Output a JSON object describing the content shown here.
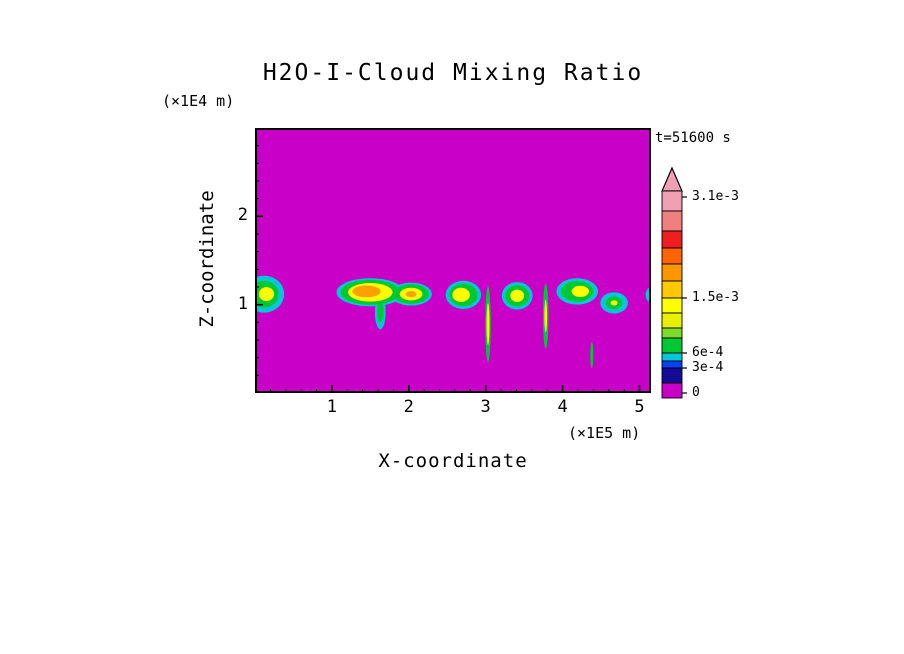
{
  "title": "H2O-I-Cloud Mixing Ratio",
  "time_label": "t=51600 s",
  "axes": {
    "x_label": "X-coordinate",
    "x_unit": "(×1E5 m)",
    "z_label": "Z-coordinate",
    "z_unit": "(×1E4 m)"
  },
  "chart_data": {
    "type": "heatmap",
    "title": "H2O-I-Cloud Mixing Ratio",
    "xlabel": "X-coordinate",
    "ylabel": "Z-coordinate",
    "x_unit": "(×1E5 m)",
    "z_unit": "(×1E4 m)",
    "time_annotation": "t=51600 s",
    "xlim": [
      0,
      5.15
    ],
    "zlim": [
      0,
      3.0
    ],
    "x_major_ticks": [
      1,
      2,
      3,
      4,
      5
    ],
    "x_minor_step": 0.2,
    "z_major_ticks": [
      1,
      2
    ],
    "z_minor_step": 0.2,
    "grid": false,
    "background_value": 0,
    "background_color": "#C800C8",
    "colorbar": {
      "arrow_color": "#F0A0B4",
      "labels": [
        {
          "text": "3.1e-3",
          "offset": 6
        },
        {
          "text": "1.5e-3",
          "offset": 107
        },
        {
          "text": "6e-4",
          "offset": 162
        },
        {
          "text": "3e-4",
          "offset": 177
        },
        {
          "text": "0",
          "offset": 202
        }
      ],
      "segments_bottom_to_top": [
        {
          "c": "#C800C8",
          "h": 15
        },
        {
          "c": "#140A96",
          "h": 15
        },
        {
          "c": "#0040FF",
          "h": 7
        },
        {
          "c": "#00C8D8",
          "h": 8
        },
        {
          "c": "#00C832",
          "h": 15
        },
        {
          "c": "#7CDC28",
          "h": 10
        },
        {
          "c": "#E8F000",
          "h": 15
        },
        {
          "c": "#FFFF00",
          "h": 15
        },
        {
          "c": "#FFC800",
          "h": 17
        },
        {
          "c": "#FF9600",
          "h": 17
        },
        {
          "c": "#FF6400",
          "h": 16
        },
        {
          "c": "#F01E1E",
          "h": 17
        },
        {
          "c": "#F08080",
          "h": 20
        },
        {
          "c": "#F0A0B4",
          "h": 20
        }
      ]
    },
    "cloud_parts": [
      {
        "cx": 0.12,
        "cz": 1.12,
        "rx": 0.26,
        "rz": 0.21,
        "layers": [
          {
            "c": "#00C8D8",
            "s": 1
          },
          {
            "c": "#00C832",
            "s": 0.72
          },
          {
            "c": "#FFFF00",
            "s": 0.38,
            "ox": 0.03
          }
        ]
      },
      {
        "cx": 1.5,
        "cz": 1.14,
        "rx": 0.44,
        "rz": 0.16,
        "layers": [
          {
            "c": "#00C8D8",
            "s": 1
          },
          {
            "c": "#00C832",
            "s": 0.88
          },
          {
            "c": "#FFFF00",
            "s": 0.66
          },
          {
            "c": "#FFA000",
            "s": 0.42,
            "ox": -0.05,
            "oz": 0.01
          }
        ]
      },
      {
        "cx": 2.03,
        "cz": 1.12,
        "rx": 0.27,
        "rz": 0.13,
        "layers": [
          {
            "c": "#00C8D8",
            "s": 1
          },
          {
            "c": "#00C832",
            "s": 0.85
          },
          {
            "c": "#FFFF00",
            "s": 0.55
          },
          {
            "c": "#FFA000",
            "s": 0.26
          }
        ]
      },
      {
        "cx": 1.63,
        "cz": 0.92,
        "rx": 0.07,
        "rz": 0.2,
        "layers": [
          {
            "c": "#00C8D8",
            "s": 1
          },
          {
            "c": "#00C832",
            "s": 0.6
          }
        ]
      },
      {
        "cx": 2.71,
        "cz": 1.11,
        "rx": 0.23,
        "rz": 0.16,
        "layers": [
          {
            "c": "#00C8D8",
            "s": 1
          },
          {
            "c": "#00C832",
            "s": 0.8
          },
          {
            "c": "#FFFF00",
            "s": 0.5,
            "ox": -0.03
          }
        ]
      },
      {
        "cx": 3.03,
        "cz": 0.78,
        "rx": 0.035,
        "rz": 0.43,
        "layers": [
          {
            "c": "#00C832",
            "s": 1
          },
          {
            "c": "#FFFF00",
            "s": 0.55
          }
        ]
      },
      {
        "cx": 3.41,
        "cz": 1.1,
        "rx": 0.2,
        "rz": 0.155,
        "layers": [
          {
            "c": "#00C8D8",
            "s": 1
          },
          {
            "c": "#00C832",
            "s": 0.78
          },
          {
            "c": "#FFFF00",
            "s": 0.45
          }
        ]
      },
      {
        "cx": 3.78,
        "cz": 0.87,
        "rx": 0.035,
        "rz": 0.37,
        "layers": [
          {
            "c": "#00C832",
            "s": 1
          },
          {
            "c": "#FFFF00",
            "s": 0.5
          }
        ]
      },
      {
        "cx": 4.19,
        "cz": 1.15,
        "rx": 0.27,
        "rz": 0.15,
        "layers": [
          {
            "c": "#00C8D8",
            "s": 1
          },
          {
            "c": "#00C832",
            "s": 0.78
          },
          {
            "c": "#FFFF00",
            "s": 0.42,
            "ox": 0.04
          }
        ]
      },
      {
        "cx": 4.67,
        "cz": 1.02,
        "rx": 0.18,
        "rz": 0.12,
        "layers": [
          {
            "c": "#00C8D8",
            "s": 1
          },
          {
            "c": "#00C832",
            "s": 0.6
          },
          {
            "c": "#FFFF00",
            "s": 0.25
          }
        ]
      },
      {
        "cx": 4.38,
        "cz": 0.43,
        "rx": 0.02,
        "rz": 0.15,
        "layers": [
          {
            "c": "#00C832",
            "s": 1
          }
        ]
      },
      {
        "cx": 5.18,
        "cz": 1.11,
        "rx": 0.1,
        "rz": 0.1,
        "layers": [
          {
            "c": "#00C8D8",
            "s": 1
          },
          {
            "c": "#00C832",
            "s": 0.55
          }
        ]
      }
    ]
  }
}
